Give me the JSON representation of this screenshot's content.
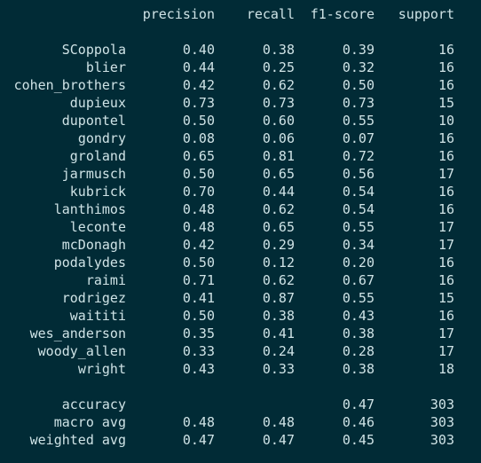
{
  "header": {
    "precision": "precision",
    "recall": "recall",
    "f1": "f1-score",
    "support": "support"
  },
  "classes": [
    {
      "label": "SCoppola",
      "precision": "0.40",
      "recall": "0.38",
      "f1": "0.39",
      "support": "16"
    },
    {
      "label": "blier",
      "precision": "0.44",
      "recall": "0.25",
      "f1": "0.32",
      "support": "16"
    },
    {
      "label": "cohen_brothers",
      "precision": "0.42",
      "recall": "0.62",
      "f1": "0.50",
      "support": "16"
    },
    {
      "label": "dupieux",
      "precision": "0.73",
      "recall": "0.73",
      "f1": "0.73",
      "support": "15"
    },
    {
      "label": "dupontel",
      "precision": "0.50",
      "recall": "0.60",
      "f1": "0.55",
      "support": "10"
    },
    {
      "label": "gondry",
      "precision": "0.08",
      "recall": "0.06",
      "f1": "0.07",
      "support": "16"
    },
    {
      "label": "groland",
      "precision": "0.65",
      "recall": "0.81",
      "f1": "0.72",
      "support": "16"
    },
    {
      "label": "jarmusch",
      "precision": "0.50",
      "recall": "0.65",
      "f1": "0.56",
      "support": "17"
    },
    {
      "label": "kubrick",
      "precision": "0.70",
      "recall": "0.44",
      "f1": "0.54",
      "support": "16"
    },
    {
      "label": "lanthimos",
      "precision": "0.48",
      "recall": "0.62",
      "f1": "0.54",
      "support": "16"
    },
    {
      "label": "leconte",
      "precision": "0.48",
      "recall": "0.65",
      "f1": "0.55",
      "support": "17"
    },
    {
      "label": "mcDonagh",
      "precision": "0.42",
      "recall": "0.29",
      "f1": "0.34",
      "support": "17"
    },
    {
      "label": "podalydes",
      "precision": "0.50",
      "recall": "0.12",
      "f1": "0.20",
      "support": "16"
    },
    {
      "label": "raimi",
      "precision": "0.71",
      "recall": "0.62",
      "f1": "0.67",
      "support": "16"
    },
    {
      "label": "rodrigez",
      "precision": "0.41",
      "recall": "0.87",
      "f1": "0.55",
      "support": "15"
    },
    {
      "label": "waititi",
      "precision": "0.50",
      "recall": "0.38",
      "f1": "0.43",
      "support": "16"
    },
    {
      "label": "wes_anderson",
      "precision": "0.35",
      "recall": "0.41",
      "f1": "0.38",
      "support": "17"
    },
    {
      "label": "woody_allen",
      "precision": "0.33",
      "recall": "0.24",
      "f1": "0.28",
      "support": "17"
    },
    {
      "label": "wright",
      "precision": "0.43",
      "recall": "0.33",
      "f1": "0.38",
      "support": "18"
    }
  ],
  "summary": [
    {
      "label": "accuracy",
      "precision": "",
      "recall": "",
      "f1": "0.47",
      "support": "303"
    },
    {
      "label": "macro avg",
      "precision": "0.48",
      "recall": "0.48",
      "f1": "0.46",
      "support": "303"
    },
    {
      "label": "weighted avg",
      "precision": "0.47",
      "recall": "0.47",
      "f1": "0.45",
      "support": "303"
    }
  ]
}
